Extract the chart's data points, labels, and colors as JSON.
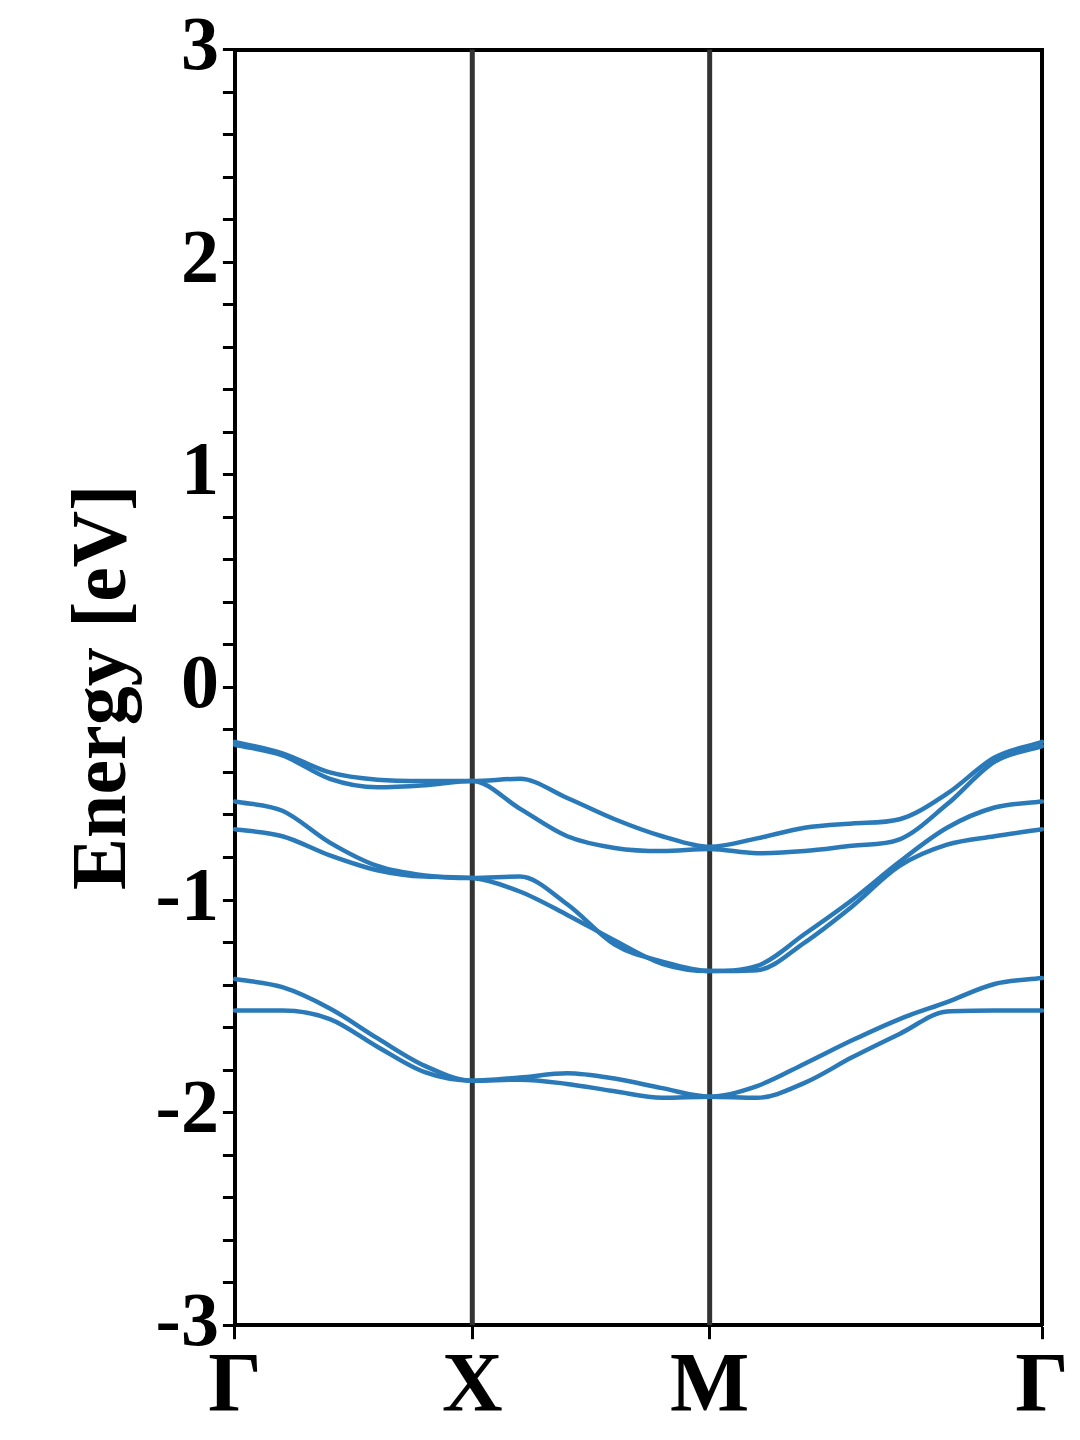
{
  "chart_data": {
    "type": "line",
    "ylabel": "Energy [eV]",
    "categories": [
      "Γ",
      null,
      null,
      null,
      null,
      "X",
      null,
      null,
      null,
      null,
      "M",
      null,
      null,
      null,
      null,
      null,
      null,
      "Γ"
    ],
    "ylim": [
      -3,
      3
    ],
    "yticks": [
      -3,
      {
        "value": -2.8,
        "label": null
      },
      {
        "value": -2.6,
        "label": null
      },
      {
        "value": -2.4,
        "label": null
      },
      {
        "value": -2.2,
        "label": null
      },
      -2,
      {
        "value": -1.8,
        "label": null
      },
      {
        "value": -1.6,
        "label": null
      },
      {
        "value": -1.4,
        "label": null
      },
      {
        "value": -1.2,
        "label": null
      },
      -1,
      {
        "value": -0.8,
        "label": null
      },
      {
        "value": -0.6,
        "label": null
      },
      {
        "value": -0.4,
        "label": null
      },
      {
        "value": -0.2,
        "label": null
      },
      0,
      {
        "value": 0.2,
        "label": null
      },
      {
        "value": 0.4,
        "label": null
      },
      {
        "value": 0.6,
        "label": null
      },
      {
        "value": 0.8,
        "label": null
      },
      1,
      {
        "value": 1.2,
        "label": null
      },
      {
        "value": 1.4,
        "label": null
      },
      {
        "value": 1.6,
        "label": null
      },
      {
        "value": 1.8,
        "label": null
      },
      2,
      {
        "value": 2.2,
        "label": null
      },
      {
        "value": 2.4,
        "label": null
      },
      {
        "value": 2.6,
        "label": null
      },
      {
        "value": 2.8,
        "label": null
      },
      3
    ],
    "grid": false,
    "legend": false,
    "marker": "none",
    "line_style": "solid",
    "ref_lines": [
      {
        "axis": "x",
        "value": "X",
        "color": "#333333"
      },
      {
        "axis": "x",
        "value": "M",
        "color": "#333333"
      }
    ],
    "series": [
      {
        "color": "#2a7ab9",
        "values": [
          -0.256,
          -0.31,
          -0.4,
          -0.434,
          -0.44,
          -0.44,
          -0.43,
          -0.52,
          -0.62,
          -0.7,
          -0.75,
          -0.71,
          -0.66,
          -0.64,
          -0.62,
          -0.5,
          -0.33,
          -0.256
        ]
      },
      {
        "color": "#2a7ab9",
        "values": [
          -0.27,
          -0.32,
          -0.43,
          -0.47,
          -0.46,
          -0.44,
          -0.57,
          -0.7,
          -0.755,
          -0.77,
          -0.76,
          -0.78,
          -0.77,
          -0.745,
          -0.715,
          -0.55,
          -0.35,
          -0.276
        ]
      },
      {
        "color": "#2a7ab9",
        "values": [
          -0.537,
          -0.58,
          -0.73,
          -0.84,
          -0.885,
          -0.897,
          -0.89,
          -1.02,
          -1.21,
          -1.29,
          -1.334,
          -1.31,
          -1.16,
          -1,
          -0.82,
          -0.66,
          -0.565,
          -0.537
        ]
      },
      {
        "color": "#2a7ab9",
        "values": [
          -0.667,
          -0.7,
          -0.79,
          -0.86,
          -0.89,
          -0.897,
          -0.96,
          -1.07,
          -1.19,
          -1.3,
          -1.334,
          -1.33,
          -1.2,
          -1.03,
          -0.84,
          -0.74,
          -0.7,
          -0.667
        ]
      },
      {
        "color": "#2a7ab9",
        "values": [
          -1.372,
          -1.41,
          -1.51,
          -1.65,
          -1.78,
          -1.85,
          -1.835,
          -1.815,
          -1.84,
          -1.885,
          -1.925,
          -1.875,
          -1.77,
          -1.66,
          -1.56,
          -1.48,
          -1.395,
          -1.367
        ]
      },
      {
        "color": "#2a7ab9",
        "values": [
          -1.52,
          -1.52,
          -1.56,
          -1.69,
          -1.81,
          -1.85,
          -1.845,
          -1.865,
          -1.9,
          -1.93,
          -1.925,
          -1.93,
          -1.86,
          -1.74,
          -1.63,
          -1.525,
          -1.52,
          -1.52
        ]
      }
    ]
  }
}
